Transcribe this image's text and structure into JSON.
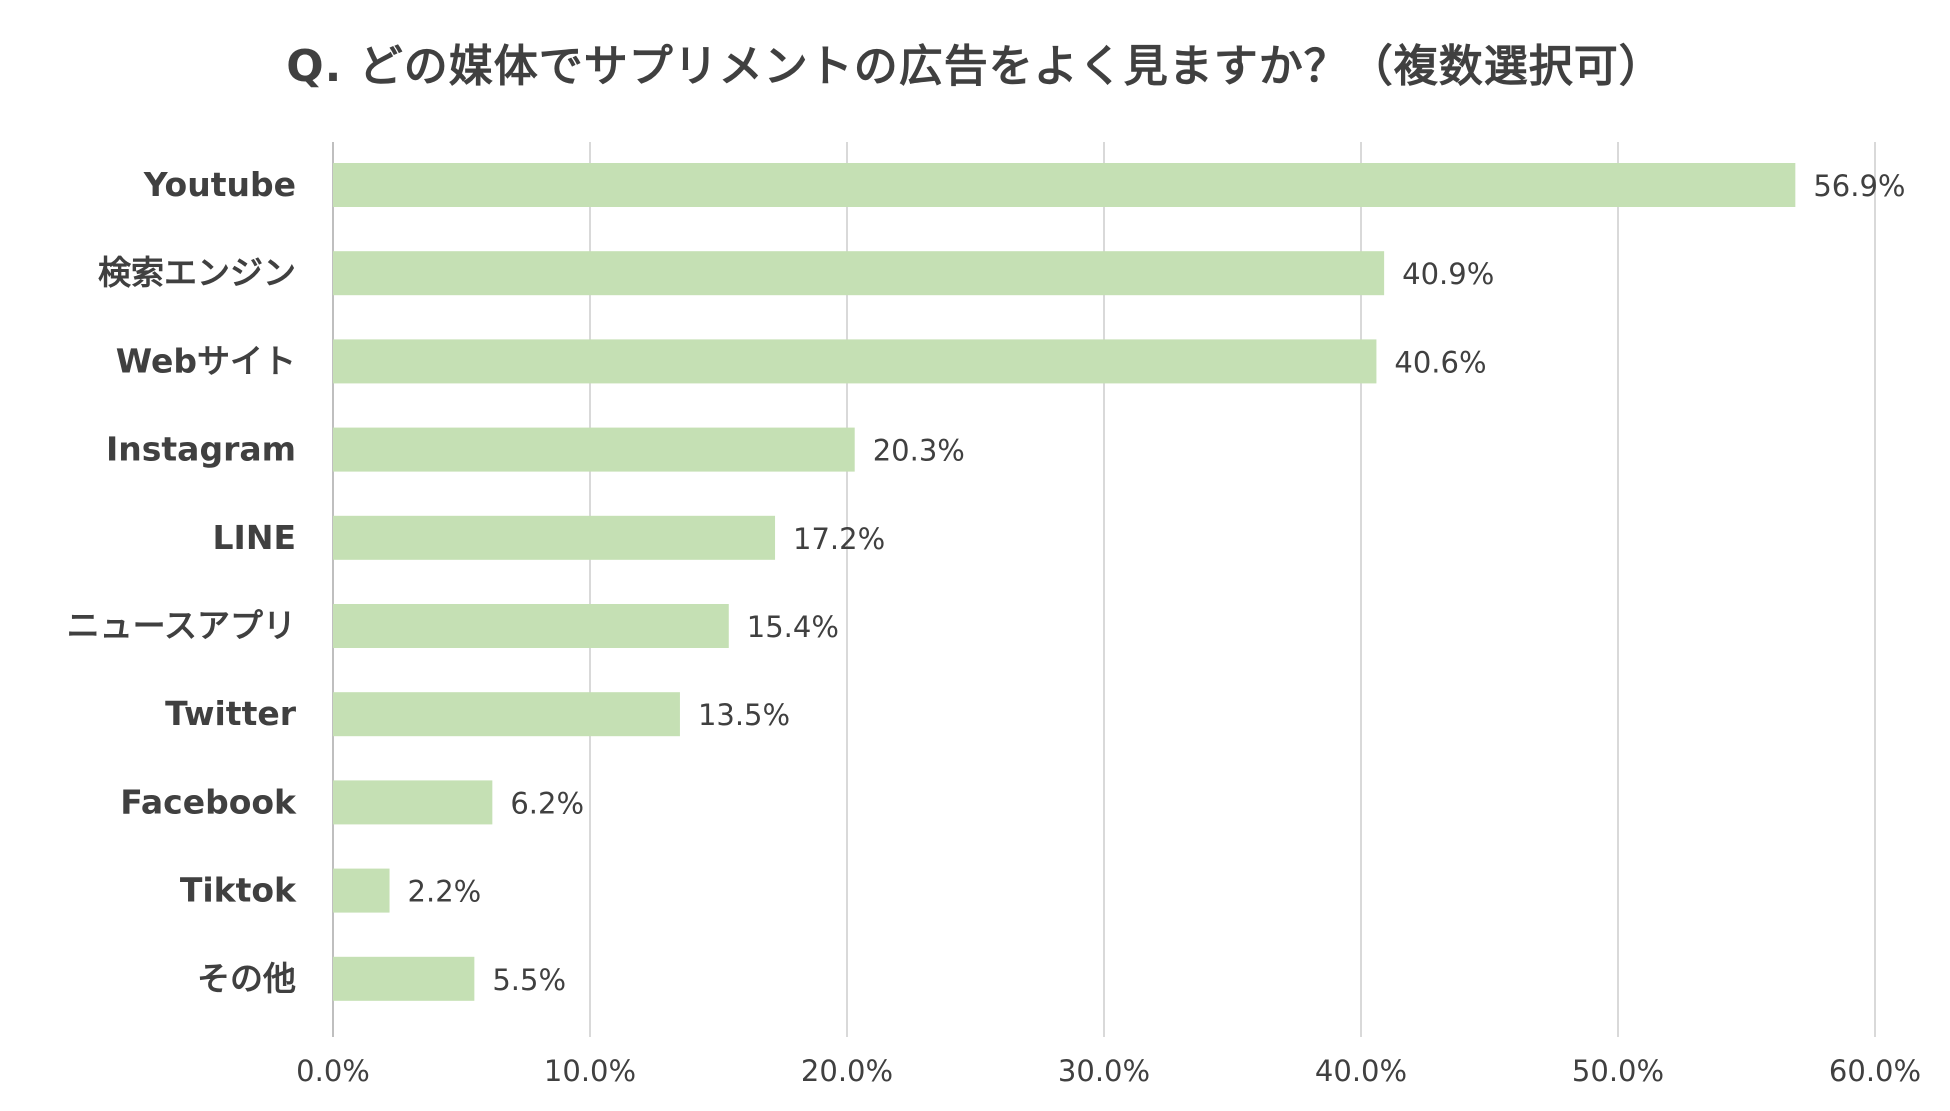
{
  "chart_data": {
    "type": "bar",
    "orientation": "horizontal",
    "title": "Q. どの媒体でサプリメントの広告をよく見ますか？（複数選択可）",
    "categories": [
      "Youtube",
      "検索エンジン",
      "Webサイト",
      "Instagram",
      "LINE",
      "ニュースアプリ",
      "Twitter",
      "Facebook",
      "Tiktok",
      "その他"
    ],
    "values": [
      56.9,
      40.9,
      40.6,
      20.3,
      17.2,
      15.4,
      13.5,
      6.2,
      2.2,
      5.5
    ],
    "data_labels": [
      "56.9%",
      "40.9%",
      "40.6%",
      "20.3%",
      "17.2%",
      "15.4%",
      "13.5%",
      "6.2%",
      "2.2%",
      "5.5%"
    ],
    "xlim": [
      0,
      60
    ],
    "x_ticks": [
      0,
      10,
      20,
      30,
      40,
      50,
      60
    ],
    "x_tick_labels": [
      "0.0%",
      "10.0%",
      "20.0%",
      "30.0%",
      "40.0%",
      "50.0%",
      "60.0%"
    ],
    "xlabel": "",
    "ylabel": "",
    "grid": "vertical",
    "legend": "none",
    "bar_color": "#c5e0b4",
    "gridline_color": "#d9d9d9",
    "text_color": "#404040"
  }
}
